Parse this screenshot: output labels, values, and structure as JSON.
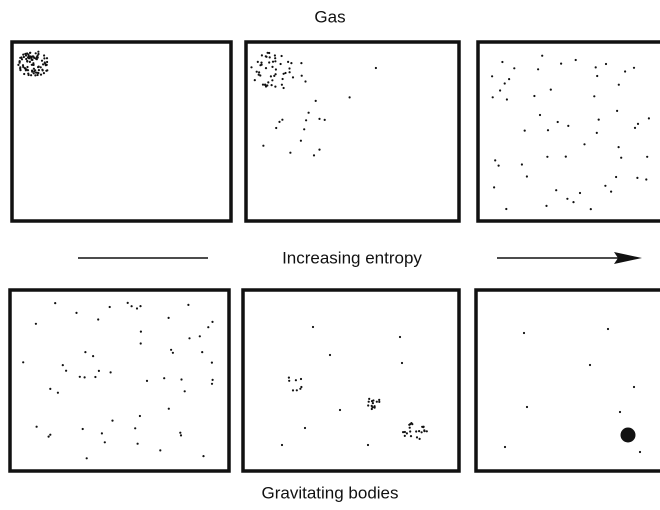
{
  "title": "Gas",
  "arrow_label": "Increasing entropy",
  "bottom_label": "Gravitating bodies"
}
